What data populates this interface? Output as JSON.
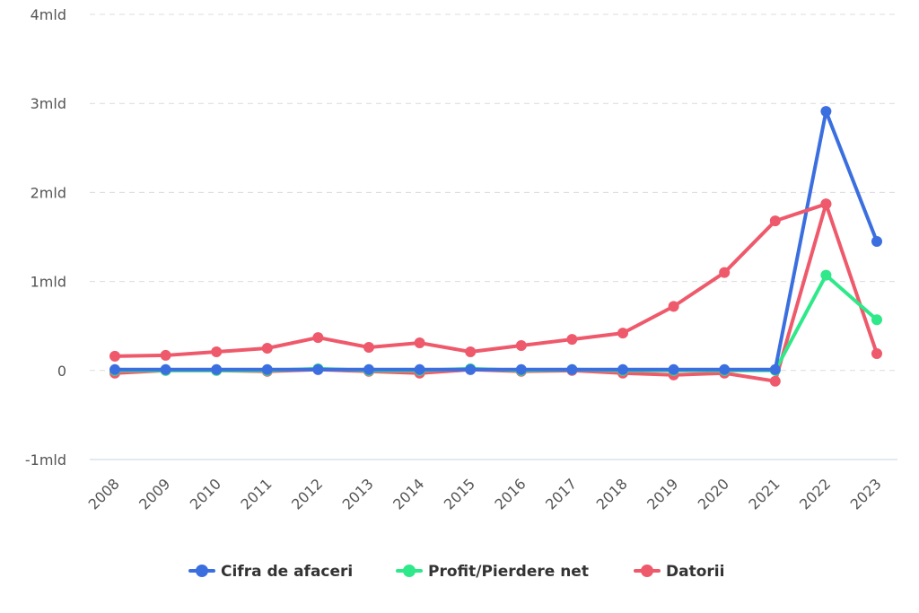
{
  "chart_data": {
    "type": "line",
    "title": "",
    "xlabel": "",
    "ylabel": "",
    "categories": [
      "2008",
      "2009",
      "2010",
      "2011",
      "2012",
      "2013",
      "2014",
      "2015",
      "2016",
      "2017",
      "2018",
      "2019",
      "2020",
      "2021",
      "2022",
      "2023"
    ],
    "ylim": [
      -1,
      4
    ],
    "yticks": [
      {
        "value": 4,
        "label": "4mld"
      },
      {
        "value": 3,
        "label": "3mld"
      },
      {
        "value": 2,
        "label": "2mld"
      },
      {
        "value": 1,
        "label": "1mld"
      },
      {
        "value": 0,
        "label": "0"
      },
      {
        "value": -1,
        "label": "-1mld"
      }
    ],
    "grid": true,
    "legend_position": "bottom",
    "series": [
      {
        "name": "Cifra de afaceri",
        "color": "#3b6fe0",
        "values": [
          0.01,
          0.01,
          0.01,
          0.01,
          0.01,
          0.01,
          0.01,
          0.01,
          0.01,
          0.01,
          0.01,
          0.01,
          0.01,
          0.01,
          2.91,
          1.45
        ]
      },
      {
        "name": "Profit/Pierdere net",
        "color": "#2ee88a",
        "values": [
          0.0,
          0.0,
          0.0,
          0.0,
          0.02,
          0.0,
          0.0,
          0.02,
          0.0,
          0.01,
          0.0,
          0.0,
          0.0,
          0.0,
          1.07,
          0.57
        ]
      },
      {
        "name": "Datorii",
        "color": "#ee5a6b",
        "values": [
          0.16,
          0.17,
          0.21,
          0.25,
          0.37,
          0.26,
          0.31,
          0.21,
          0.28,
          0.35,
          0.42,
          0.72,
          1.1,
          1.68,
          1.87,
          0.19
        ]
      }
    ],
    "series_extra": {
      "datorii_low": [
        -0.03,
        0.0,
        0.0,
        -0.01,
        0.01,
        -0.01,
        -0.03,
        0.01,
        -0.01,
        0.0,
        -0.03,
        -0.05,
        -0.03,
        -0.12
      ]
    }
  }
}
